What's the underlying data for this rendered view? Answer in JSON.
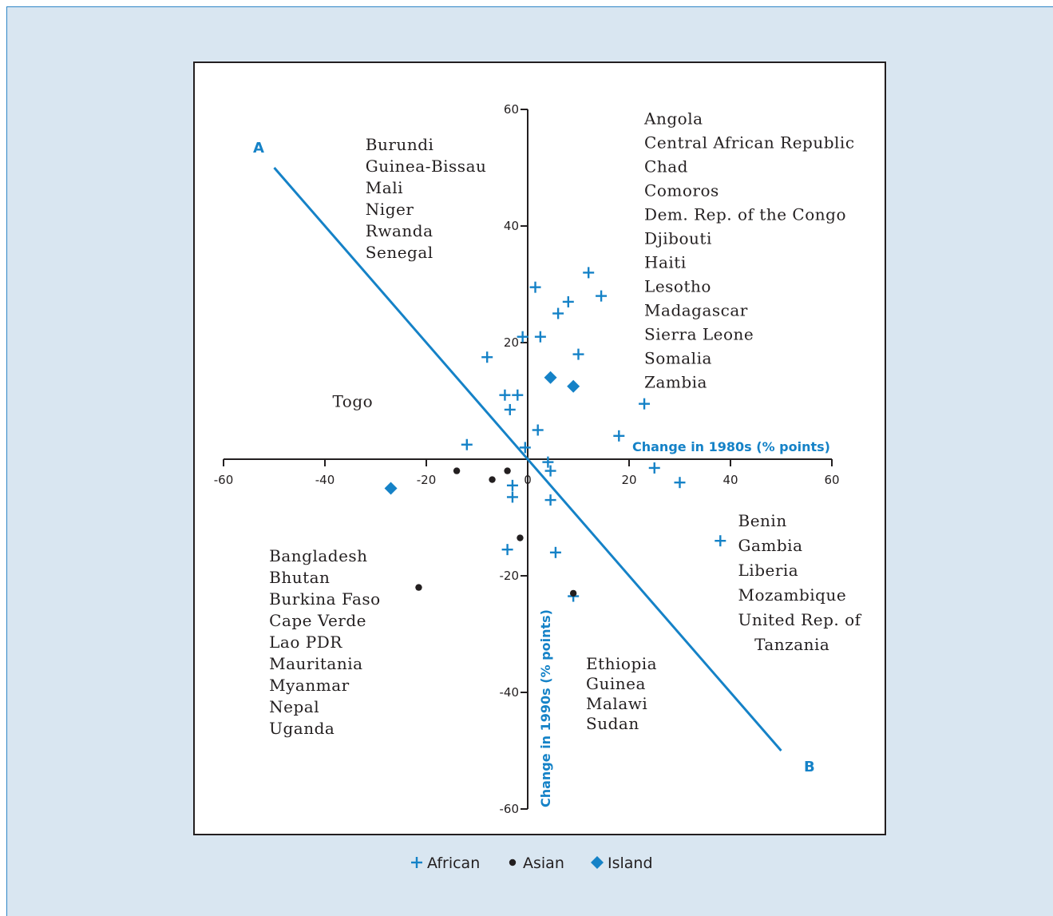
{
  "colors": {
    "accent": "#1582c7",
    "panel_bg": "#d9e6f1",
    "axis": "#231f20",
    "asian_marker": "#231f20"
  },
  "chart_data": {
    "type": "scatter",
    "xlabel": "Change in 1980s (% points)",
    "ylabel": "Change in 1990s (% points)",
    "xlim": [
      -60,
      60
    ],
    "ylim": [
      -60,
      60
    ],
    "x_ticks": [
      -60,
      -40,
      -20,
      0,
      20,
      40,
      60
    ],
    "y_ticks": [
      60,
      40,
      20,
      0,
      -20,
      -40,
      -60
    ],
    "grid": false,
    "legend_position": "bottom",
    "series": [
      {
        "name": "African",
        "marker": "plus",
        "color": "#1582c7",
        "points": [
          [
            1.5,
            29.5
          ],
          [
            12,
            32
          ],
          [
            14.5,
            28
          ],
          [
            8,
            27
          ],
          [
            6,
            25
          ],
          [
            -1,
            21
          ],
          [
            2.5,
            21
          ],
          [
            10,
            18
          ],
          [
            -8,
            17.5
          ],
          [
            -4.5,
            11
          ],
          [
            -2,
            11
          ],
          [
            -3.5,
            8.5
          ],
          [
            2,
            5
          ],
          [
            23,
            9.5
          ],
          [
            18,
            4
          ],
          [
            -12,
            2.5
          ],
          [
            -0.5,
            2
          ],
          [
            4,
            -0.5
          ],
          [
            4.5,
            -2
          ],
          [
            25,
            -1.5
          ],
          [
            30,
            -4
          ],
          [
            -3,
            -4.5
          ],
          [
            -3,
            -6.5
          ],
          [
            4.5,
            -7
          ],
          [
            -4,
            -15.5
          ],
          [
            5.5,
            -16
          ],
          [
            38,
            -14
          ],
          [
            9,
            -23.5
          ]
        ]
      },
      {
        "name": "Asian",
        "marker": "circle",
        "color": "#231f20",
        "points": [
          [
            -14,
            -2
          ],
          [
            -7,
            -3.5
          ],
          [
            -4,
            -2
          ],
          [
            -1.5,
            -13.5
          ],
          [
            -21.5,
            -22
          ],
          [
            9,
            -23
          ]
        ]
      },
      {
        "name": "Island",
        "marker": "diamond",
        "color": "#1582c7",
        "points": [
          [
            4.5,
            14
          ],
          [
            9,
            12.5
          ],
          [
            -27,
            -5
          ]
        ]
      }
    ],
    "line": {
      "label_start": "A",
      "label_end": "B",
      "from": [
        -50,
        50
      ],
      "to": [
        50,
        -50
      ]
    },
    "annotations": [
      {
        "key": "q_top_left",
        "at": [
          -32,
          53
        ],
        "lines": [
          "Burundi",
          "Guinea-Bissau",
          "Mali",
          "Niger",
          "Rwanda",
          "Senegal"
        ]
      },
      {
        "key": "q_top_right",
        "at": [
          23,
          57.5
        ],
        "lines": [
          "Angola",
          "Central African Republic",
          "Chad",
          "Comoros",
          "Dem. Rep. of the Congo",
          "Djibouti",
          "Haiti",
          "Lesotho",
          "Madagascar",
          "Sierra Leone",
          "Somalia",
          "Zambia"
        ]
      },
      {
        "key": "togo",
        "at": [
          -38.5,
          9
        ],
        "lines": [
          "Togo"
        ]
      },
      {
        "key": "q_bottom_right",
        "at": [
          41.5,
          -11.5
        ],
        "lines": [
          "Benin",
          "Gambia",
          "Liberia",
          "Mozambique",
          "United Rep. of",
          "   Tanzania"
        ]
      },
      {
        "key": "q_bottom_left",
        "at": [
          -51,
          -17.5
        ],
        "lines": [
          "Bangladesh",
          "Bhutan",
          "Burkina Faso",
          "Cape Verde",
          "Lao PDR",
          "Mauritania",
          "Myanmar",
          "Nepal",
          "Uganda"
        ]
      },
      {
        "key": "q_bottom_mid",
        "at": [
          11.5,
          -36
        ],
        "lines": [
          "Ethiopia",
          "Guinea",
          "Malawi",
          "Sudan"
        ]
      }
    ]
  }
}
